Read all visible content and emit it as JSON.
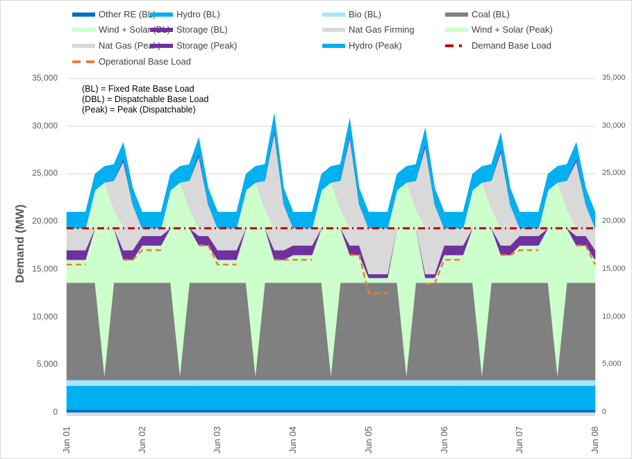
{
  "chart_data": {
    "type": "area",
    "stacked": true,
    "title": "",
    "ylabel": "Demand (MW)",
    "ylim": [
      0,
      35000
    ],
    "yticks": [
      "0",
      "5,000",
      "10,000",
      "15,000",
      "20,000",
      "25,000",
      "30,000",
      "35,000"
    ],
    "secondary_yticks": [
      "0",
      "5,000",
      "10,000",
      "15,000",
      "20,000",
      "25,000",
      "30,000",
      "35,000"
    ],
    "xticks": [
      "Jun 01",
      "Jun 02",
      "Jun 03",
      "Jun 04",
      "Jun 05",
      "Jun 06",
      "Jun 07",
      "Jun 08"
    ],
    "legend_position": "top",
    "notes": [
      "(BL) = Fixed Rate Base Load",
      "(DBL) = Dispatchable Base Load",
      "(Peak) = Peak (Dispatchable)"
    ],
    "x": [
      "Jun 01 00:00",
      "Jun 01 03:00",
      "Jun 01 06:00",
      "Jun 01 09:00",
      "Jun 01 12:00",
      "Jun 01 15:00",
      "Jun 01 18:00",
      "Jun 01 21:00",
      "Jun 02 00:00",
      "Jun 02 03:00",
      "Jun 02 06:00",
      "Jun 02 09:00",
      "Jun 02 12:00",
      "Jun 02 15:00",
      "Jun 02 18:00",
      "Jun 02 21:00",
      "Jun 03 00:00",
      "Jun 03 03:00",
      "Jun 03 06:00",
      "Jun 03 09:00",
      "Jun 03 12:00",
      "Jun 03 15:00",
      "Jun 03 18:00",
      "Jun 03 21:00",
      "Jun 04 00:00",
      "Jun 04 03:00",
      "Jun 04 06:00",
      "Jun 04 09:00",
      "Jun 04 12:00",
      "Jun 04 15:00",
      "Jun 04 18:00",
      "Jun 04 21:00",
      "Jun 05 00:00",
      "Jun 05 03:00",
      "Jun 05 06:00",
      "Jun 05 09:00",
      "Jun 05 12:00",
      "Jun 05 15:00",
      "Jun 05 18:00",
      "Jun 05 21:00",
      "Jun 06 00:00",
      "Jun 06 03:00",
      "Jun 06 06:00",
      "Jun 06 09:00",
      "Jun 06 12:00",
      "Jun 06 15:00",
      "Jun 06 18:00",
      "Jun 06 21:00",
      "Jun 07 00:00",
      "Jun 07 03:00",
      "Jun 07 06:00",
      "Jun 07 09:00",
      "Jun 07 12:00",
      "Jun 07 15:00",
      "Jun 07 18:00",
      "Jun 07 21:00",
      "Jun 08 00:00"
    ],
    "series": [
      {
        "name": "Other RE (BL)",
        "color": "#0070C0",
        "kind": "area",
        "values": 300
      },
      {
        "name": "Hydro (BL)",
        "color": "#00B0F0",
        "kind": "area",
        "values": 2500
      },
      {
        "name": "Bio (BL)",
        "color": "#A6E5FA",
        "kind": "area",
        "values": 600
      },
      {
        "name": "Coal (BL)",
        "color": "#808080",
        "kind": "area",
        "values": [
          10200,
          10200,
          10200,
          10200,
          500,
          10200,
          10200,
          10200,
          10200,
          10200,
          10200,
          10200,
          500,
          10200,
          10200,
          10200,
          10200,
          10200,
          10200,
          10200,
          500,
          10200,
          10200,
          10200,
          10200,
          10200,
          10200,
          10200,
          500,
          10200,
          10200,
          10200,
          10200,
          10200,
          10200,
          10200,
          500,
          10200,
          10200,
          10200,
          10200,
          10200,
          10200,
          10200,
          500,
          10200,
          10200,
          10200,
          10200,
          10200,
          10200,
          10200,
          500,
          10200,
          10200,
          10200,
          10200
        ]
      },
      {
        "name": "Wind + Solar (BL)",
        "color": "#CCFFCC",
        "kind": "area",
        "values": [
          2400,
          2400,
          2400,
          5700,
          15200,
          5700,
          2400,
          2400,
          3900,
          3900,
          3900,
          5700,
          15200,
          5700,
          3900,
          3900,
          2400,
          2400,
          2400,
          5700,
          15200,
          5700,
          2400,
          2400,
          2900,
          2900,
          2900,
          5700,
          15200,
          5700,
          2900,
          2900,
          500,
          500,
          500,
          5700,
          15200,
          5700,
          500,
          500,
          2900,
          2900,
          2900,
          5700,
          15200,
          5700,
          2900,
          2900,
          3900,
          3900,
          3900,
          5700,
          15200,
          5700,
          3900,
          3900,
          2400
        ]
      },
      {
        "name": "Storage (BL)",
        "color": "#7030A0",
        "kind": "area",
        "values": [
          1000,
          1000,
          1000,
          0,
          0,
          0,
          1000,
          1000,
          1000,
          1000,
          1000,
          0,
          0,
          0,
          1000,
          1000,
          1000,
          1000,
          1000,
          0,
          0,
          0,
          1000,
          1000,
          1000,
          1000,
          1000,
          0,
          0,
          0,
          1000,
          1000,
          400,
          400,
          400,
          0,
          0,
          0,
          400,
          400,
          1000,
          1000,
          1000,
          0,
          0,
          0,
          1000,
          1000,
          1000,
          1000,
          1000,
          0,
          0,
          0,
          1000,
          1000,
          1000
        ]
      },
      {
        "name": "Nat Gas Firming",
        "color": "#D9D9D9",
        "kind": "area",
        "values": [
          2300,
          2300,
          2300,
          0,
          0,
          0,
          2300,
          2300,
          800,
          800,
          800,
          0,
          0,
          0,
          800,
          800,
          2300,
          2300,
          2300,
          0,
          0,
          0,
          2300,
          2300,
          1800,
          1800,
          1800,
          0,
          0,
          0,
          1800,
          1800,
          4800,
          4800,
          4800,
          0,
          0,
          0,
          4800,
          4800,
          1800,
          1800,
          1800,
          0,
          0,
          0,
          1800,
          1800,
          800,
          800,
          800,
          0,
          0,
          0,
          800,
          800,
          2300
        ]
      },
      {
        "name": "Wind + Solar (Peak)",
        "color": "#CCFFCC",
        "kind": "area",
        "values": [
          0,
          0,
          0,
          4000,
          5000,
          2000,
          0,
          0,
          0,
          0,
          0,
          4000,
          5000,
          2000,
          0,
          0,
          0,
          0,
          0,
          4000,
          5000,
          2000,
          0,
          0,
          0,
          0,
          0,
          4000,
          5000,
          2000,
          0,
          0,
          0,
          0,
          0,
          4000,
          5000,
          2000,
          0,
          0,
          0,
          0,
          0,
          4000,
          5000,
          2000,
          0,
          0,
          0,
          0,
          0,
          4000,
          5000,
          2000,
          0,
          0,
          0
        ]
      },
      {
        "name": "Nat Gas (Peak)",
        "color": "#D9D9D9",
        "kind": "area",
        "values": [
          0,
          0,
          0,
          0,
          0,
          3000,
          7000,
          2500,
          0,
          0,
          0,
          0,
          0,
          3000,
          7500,
          2500,
          0,
          0,
          0,
          0,
          0,
          3000,
          10000,
          2500,
          0,
          0,
          0,
          0,
          0,
          3000,
          9500,
          2500,
          0,
          0,
          0,
          0,
          0,
          3000,
          8500,
          2500,
          0,
          0,
          0,
          0,
          0,
          3000,
          8000,
          2500,
          0,
          0,
          0,
          0,
          0,
          3000,
          7000,
          2500,
          0
        ]
      },
      {
        "name": "Storage (Peak)",
        "color": "#7030A0",
        "kind": "area",
        "values": [
          0,
          0,
          0,
          0,
          0,
          0,
          300,
          0,
          0,
          0,
          0,
          0,
          0,
          0,
          300,
          0,
          0,
          0,
          0,
          0,
          0,
          0,
          300,
          0,
          0,
          0,
          0,
          0,
          0,
          0,
          300,
          0,
          0,
          0,
          0,
          0,
          0,
          0,
          300,
          0,
          0,
          0,
          0,
          0,
          0,
          0,
          300,
          0,
          0,
          0,
          0,
          0,
          0,
          0,
          300,
          0,
          0
        ]
      },
      {
        "name": "Hydro (Peak)",
        "color": "#00B0F0",
        "kind": "area",
        "values": 1700
      },
      {
        "name": "Demand Base Load",
        "color": "#C00000",
        "kind": "line",
        "dash": "dashdot",
        "values": 19300
      },
      {
        "name": "Operational Base Load",
        "color": "#ED7D31",
        "kind": "line",
        "dash": "dash",
        "values": [
          15500,
          15500,
          15500,
          null,
          null,
          null,
          16000,
          16000,
          17000,
          17000,
          17000,
          null,
          null,
          null,
          17500,
          17500,
          15500,
          15500,
          15500,
          null,
          null,
          null,
          16000,
          16000,
          16000,
          16000,
          16000,
          null,
          null,
          null,
          16500,
          16500,
          12500,
          12500,
          12500,
          null,
          null,
          null,
          13500,
          13500,
          16000,
          16000,
          16000,
          null,
          null,
          null,
          16500,
          16500,
          17000,
          17000,
          17000,
          null,
          null,
          null,
          17500,
          17500,
          15500
        ]
      }
    ]
  }
}
